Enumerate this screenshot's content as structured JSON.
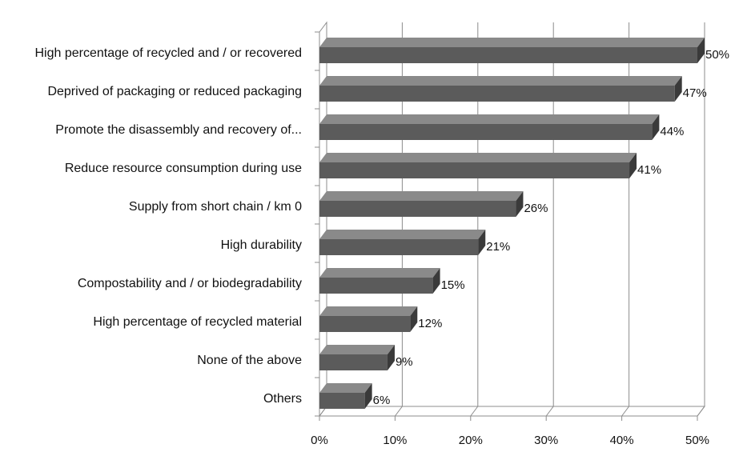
{
  "chart_data": {
    "type": "bar",
    "orientation": "horizontal",
    "categories": [
      "High percentage of recycled and / or recovered",
      "Deprived of packaging or reduced packaging",
      "Promote the disassembly and recovery of...",
      "Reduce resource consumption during use",
      "Supply from short chain / km 0",
      "High durability",
      "Compostability and / or biodegradability",
      "High percentage of recycled material",
      "None of the above",
      "Others"
    ],
    "values": [
      50,
      47,
      44,
      41,
      26,
      21,
      15,
      12,
      9,
      6
    ],
    "value_labels": [
      "50%",
      "47%",
      "44%",
      "41%",
      "26%",
      "21%",
      "15%",
      "12%",
      "9%",
      "6%"
    ],
    "x_ticks": [
      "0%",
      "10%",
      "20%",
      "30%",
      "40%",
      "50%"
    ],
    "xlim": [
      0,
      50
    ],
    "grid": "vertical",
    "style": "3d",
    "colors": {
      "bar_front": "#5b5b5b",
      "bar_top": "#8a8a8a",
      "bar_side": "#3a3a3a",
      "gridline": "#8c8c8c",
      "text": "#111111"
    }
  }
}
